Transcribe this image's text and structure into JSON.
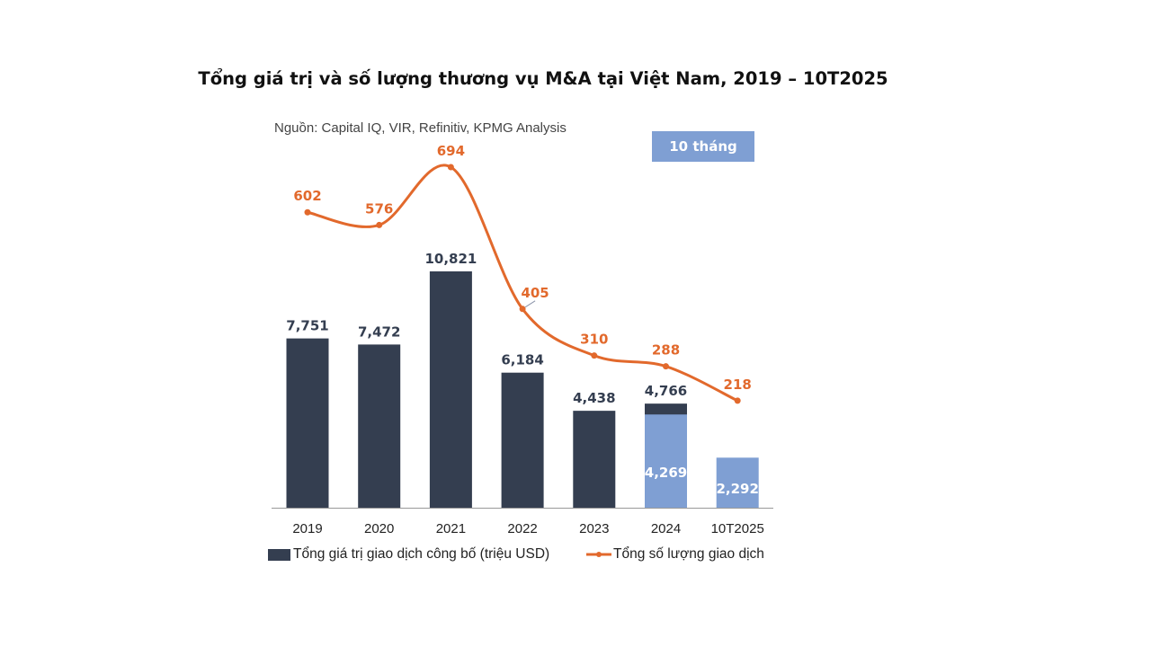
{
  "chart_data": {
    "type": "bar+line",
    "title": "Tổng giá trị và số lượng thương vụ M&A tại Việt Nam, 2019 – 10T2025",
    "subtitle": "Nguồn: Capital IQ, VIR, Refinitiv, KPMG Analysis",
    "annotation": "10 tháng",
    "categories": [
      "2019",
      "2020",
      "2021",
      "2022",
      "2023",
      "2024",
      "10T2025"
    ],
    "series": [
      {
        "name": "Tổng giá trị giao dịch công bố (triệu USD)",
        "type": "bar",
        "values": [
          7751,
          7472,
          10821,
          6184,
          4438,
          4766,
          2292
        ],
        "labels": [
          "7,751",
          "7,472",
          "10,821",
          "6,184",
          "4,438",
          "4,766",
          "2,292"
        ],
        "color": "#343e50"
      },
      {
        "type": "bar-overlay",
        "values": [
          null,
          null,
          null,
          null,
          null,
          4269,
          2292
        ],
        "labels": [
          "",
          "",
          "",
          "",
          "",
          "4,269",
          ""
        ],
        "color": "#7f9fd3"
      },
      {
        "name": "Tổng số lượng giao dịch",
        "type": "line",
        "values": [
          602,
          576,
          694,
          405,
          310,
          288,
          218
        ],
        "labels": [
          "602",
          "576",
          "694",
          "405",
          "310",
          "288",
          "218"
        ],
        "color": "#e2692c"
      }
    ],
    "grid": false,
    "legend": "bottom"
  }
}
